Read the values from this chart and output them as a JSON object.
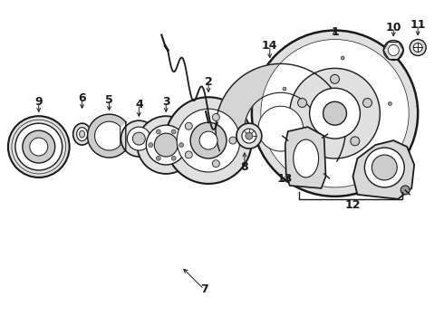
{
  "bg_color": "#ffffff",
  "fig_width": 4.9,
  "fig_height": 3.6,
  "dpi": 100,
  "dark": "#1a1a1a",
  "gray_fill": "#e0e0e0",
  "mid_gray": "#cccccc",
  "dark_gray": "#999999"
}
